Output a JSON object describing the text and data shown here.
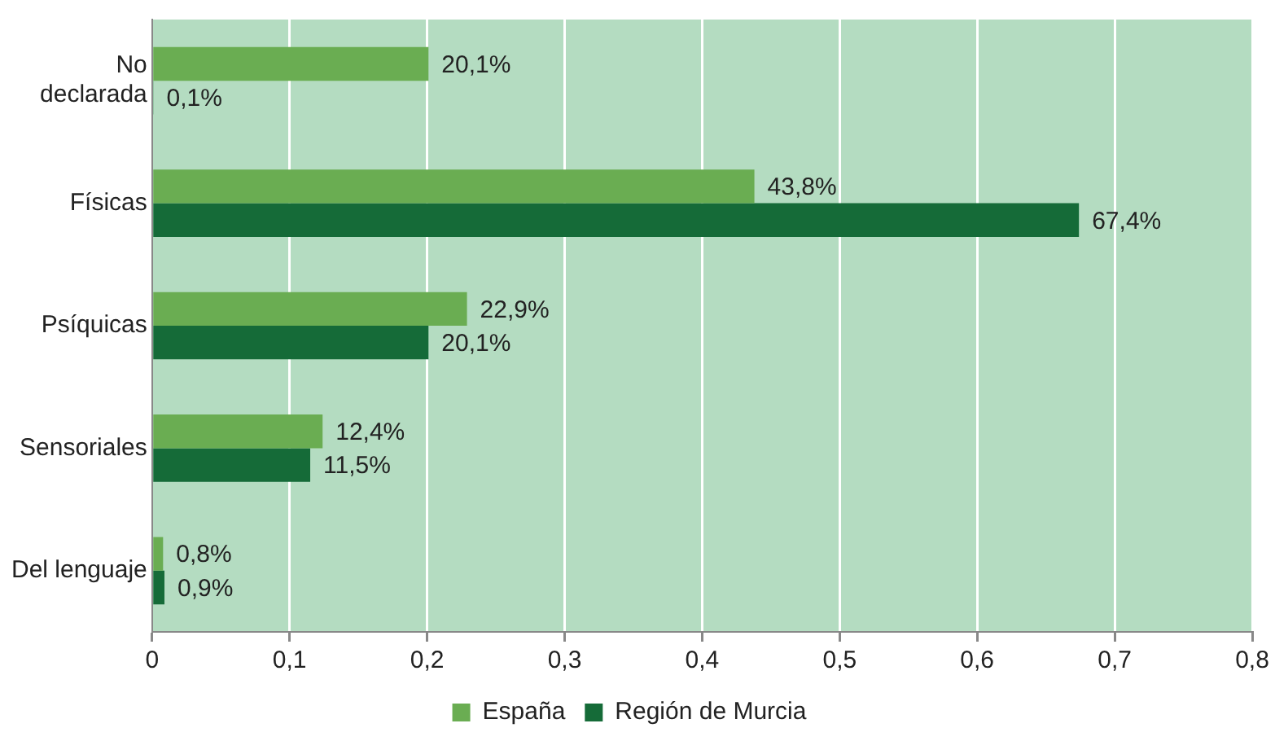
{
  "chart_data": {
    "type": "bar",
    "orientation": "horizontal",
    "categories": [
      "No declarada",
      "Físicas",
      "Psíquicas",
      "Sensoriales",
      "Del lenguaje"
    ],
    "series": [
      {
        "name": "España",
        "color": "#6aad52",
        "values": [
          0.201,
          0.438,
          0.229,
          0.124,
          0.008
        ],
        "value_labels": [
          "20,1%",
          "43,8%",
          "22,9%",
          "12,4%",
          "0,8%"
        ]
      },
      {
        "name": "Región de Murcia",
        "color": "#156b38",
        "values": [
          0.001,
          0.674,
          0.201,
          0.115,
          0.009
        ],
        "value_labels": [
          "0,1%",
          "67,4%",
          "20,1%",
          "11,5%",
          "0,9%"
        ]
      }
    ],
    "xlim": [
      0,
      0.8
    ],
    "xticks": [
      0,
      {
        "value": 0.1,
        "label": "0,1"
      },
      {
        "value": 0.2,
        "label": "0,2"
      },
      {
        "value": 0.3,
        "label": "0,3"
      },
      {
        "value": 0.4,
        "label": "0,4"
      },
      {
        "value": 0.5,
        "label": "0,5"
      },
      {
        "value": 0.6,
        "label": "0,6"
      },
      {
        "value": 0.7,
        "label": "0,7"
      },
      {
        "value": 0.8,
        "label": "0,8"
      }
    ],
    "grid": "x",
    "legend": "bottom"
  }
}
